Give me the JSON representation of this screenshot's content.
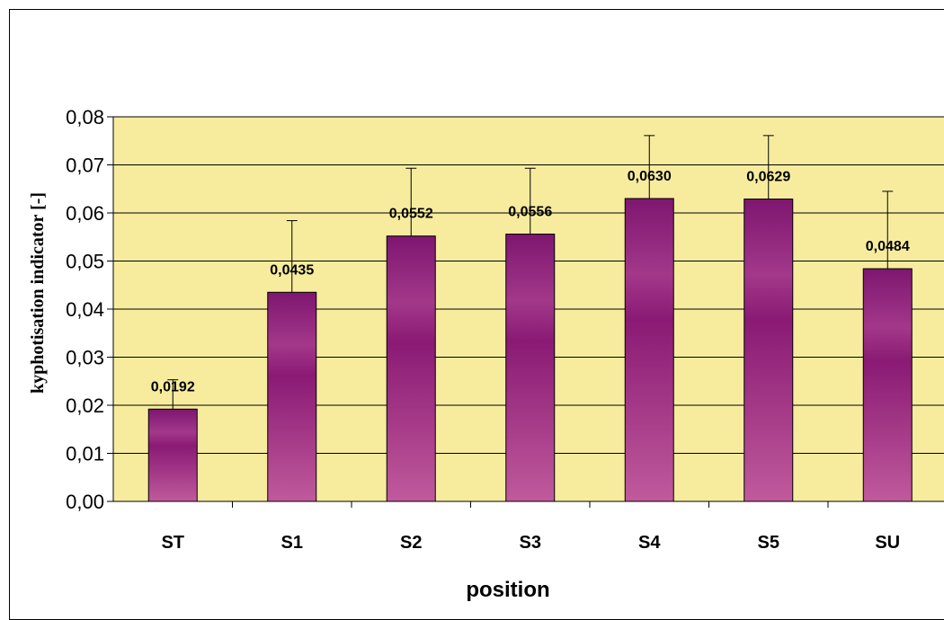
{
  "chart_data": {
    "type": "bar",
    "categories": [
      "ST",
      "S1",
      "S2",
      "S3",
      "S4",
      "S5",
      "SU"
    ],
    "values": [
      0.0192,
      0.0435,
      0.0552,
      0.0556,
      0.063,
      0.0629,
      0.0484
    ],
    "value_labels": [
      "0,0192",
      "0,0435",
      "0,0552",
      "0,0556",
      "0,0630",
      "0,0629",
      "0,0484"
    ],
    "error_upper": [
      0.0253,
      0.0584,
      0.0693,
      0.0693,
      0.0761,
      0.0761,
      0.0645
    ],
    "xlabel": "position",
    "ylabel": "kyphotisation indicator [-]",
    "ylim": [
      0,
      0.08
    ],
    "yticks": [
      0,
      0.01,
      0.02,
      0.03,
      0.04,
      0.05,
      0.06,
      0.07,
      0.08
    ],
    "ytick_labels": [
      "0,00",
      "0,01",
      "0,02",
      "0,03",
      "0,04",
      "0,05",
      "0,06",
      "0,07",
      "0,08"
    ],
    "grid": true,
    "colors": {
      "plot_background": "#f7ec9e",
      "bar_light": "#c05a9c",
      "bar_dark": "#8a1a74",
      "grid": "#000000"
    }
  }
}
